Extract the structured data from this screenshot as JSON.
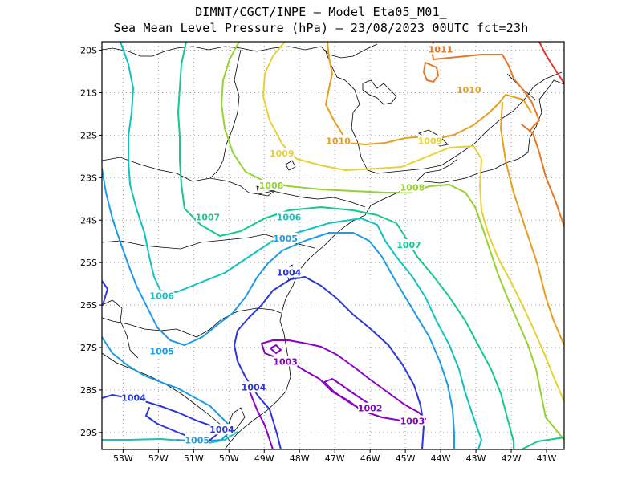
{
  "title_line1": "DIMNT/CGCT/INPE –  Model Eta05_M01_",
  "title_line2": "Sea Mean Level Pressure (hPa) – 23/08/2023 00UTC fct=23h",
  "axes": {
    "lon_ticks": [
      "53W",
      "52W",
      "51W",
      "50W",
      "49W",
      "48W",
      "47W",
      "46W",
      "45W",
      "44W",
      "43W",
      "42W",
      "41W"
    ],
    "lat_ticks": [
      "20S",
      "21S",
      "22S",
      "23S",
      "24S",
      "25S",
      "26S",
      "27S",
      "28S",
      "29S"
    ],
    "lon_range": [
      -53.6,
      -40.5
    ],
    "lat_range": [
      -29.4,
      -19.8
    ]
  },
  "chart_data": {
    "type": "contour",
    "variable": "Sea Mean Level Pressure",
    "units": "hPa",
    "run": "23/08/2023 00UTC",
    "forecast": "fct=23h",
    "levels": [
      1002,
      1003,
      1004,
      1005,
      1006,
      1007,
      1008,
      1009,
      1010,
      1011
    ],
    "colors": {
      "1002": "#8b00c8",
      "1003": "#8b00c8",
      "1004": "#2d36d8",
      "1005": "#1e9be6",
      "1006": "#0fc3c3",
      "1007": "#14c896",
      "1008": "#96d232",
      "1009": "#e6d232",
      "1010": "#e6a01e",
      "1011": "#e67828",
      "1012": "#e63232"
    },
    "contour_labels": [
      {
        "text": "1011",
        "lon": -44.0,
        "lat": -20.0
      },
      {
        "text": "1010",
        "lon": -43.2,
        "lat": -20.95
      },
      {
        "text": "1010",
        "lon": -46.9,
        "lat": -22.15
      },
      {
        "text": "1009",
        "lon": -44.3,
        "lat": -22.15
      },
      {
        "text": "1009",
        "lon": -48.5,
        "lat": -22.45
      },
      {
        "text": "1008",
        "lon": -48.8,
        "lat": -23.2
      },
      {
        "text": "1008",
        "lon": -44.8,
        "lat": -23.25
      },
      {
        "text": "1007",
        "lon": -50.6,
        "lat": -23.95
      },
      {
        "text": "1007",
        "lon": -44.9,
        "lat": -24.6
      },
      {
        "text": "1006",
        "lon": -48.3,
        "lat": -23.95
      },
      {
        "text": "1006",
        "lon": -51.9,
        "lat": -25.8
      },
      {
        "text": "1005",
        "lon": -48.4,
        "lat": -24.45
      },
      {
        "text": "1005",
        "lon": -51.9,
        "lat": -27.1
      },
      {
        "text": "1005",
        "lon": -50.9,
        "lat": -29.2
      },
      {
        "text": "1004",
        "lon": -48.3,
        "lat": -25.25
      },
      {
        "text": "1004",
        "lon": -49.3,
        "lat": -27.95
      },
      {
        "text": "1004",
        "lon": -52.7,
        "lat": -28.2
      },
      {
        "text": "1004",
        "lon": -50.2,
        "lat": -28.95
      },
      {
        "text": "1003",
        "lon": -48.4,
        "lat": -27.35
      },
      {
        "text": "1003",
        "lon": -44.8,
        "lat": -28.75
      },
      {
        "text": "1002",
        "lon": -46.0,
        "lat": -28.45
      }
    ]
  }
}
